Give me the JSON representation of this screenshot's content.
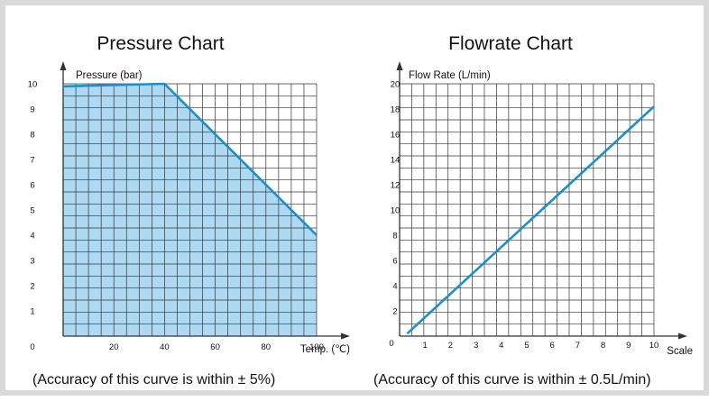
{
  "chart_data": [
    {
      "type": "area",
      "title": "Pressure Chart",
      "xlabel": "Temp. (℃)",
      "ylabel": "Pressure (bar)",
      "xlim": [
        0,
        100
      ],
      "ylim": [
        0,
        10
      ],
      "x_ticks": [
        "0",
        "20",
        "40",
        "60",
        "80",
        "100"
      ],
      "y_ticks": [
        "1",
        "2",
        "3",
        "4",
        "5",
        "6",
        "7",
        "8",
        "9",
        "10"
      ],
      "grid": true,
      "points": [
        [
          0,
          9.9
        ],
        [
          40,
          10
        ],
        [
          100,
          4
        ]
      ],
      "fill_color": "#aed9f3",
      "line_color": "#1a8fcc",
      "note": "(Accuracy of this curve is within ± 5%)"
    },
    {
      "type": "line",
      "title": "Flowrate Chart",
      "xlabel": "Scale",
      "ylabel": "Flow Rate (L/min)",
      "xlim": [
        0,
        10
      ],
      "ylim": [
        0,
        20
      ],
      "x_ticks": [
        "0",
        "1",
        "2",
        "3",
        "4",
        "5",
        "6",
        "7",
        "8",
        "9",
        "10"
      ],
      "y_ticks": [
        "2",
        "4",
        "6",
        "8",
        "10",
        "12",
        "14",
        "16",
        "18",
        "20"
      ],
      "grid": true,
      "points": [
        [
          0.3,
          0.2
        ],
        [
          10,
          18.2
        ]
      ],
      "line_color": "#1a8fcc",
      "note": "(Accuracy of this curve is within ± 0.5L/min)"
    }
  ]
}
